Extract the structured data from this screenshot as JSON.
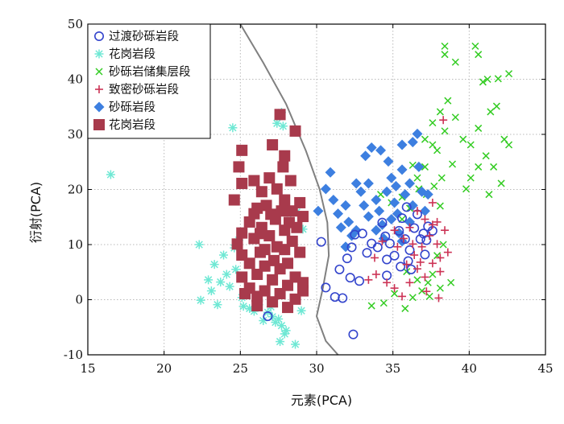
{
  "chart_data": {
    "type": "scatter",
    "title": "",
    "xlabel": "元素(PCA)",
    "ylabel": "衍射(PCA)",
    "xlim": [
      15,
      45
    ],
    "ylim": [
      -10,
      50
    ],
    "xticks": [
      "15",
      "20",
      "25",
      "30",
      "35",
      "40",
      "45"
    ],
    "yticks": [
      "-10",
      "0",
      "10",
      "20",
      "30",
      "40",
      "50"
    ],
    "grid": "dotted",
    "legend_position": "top-left",
    "series": [
      {
        "name": "过渡砂砾岩段",
        "marker": "circle-open",
        "color": "#3344cc",
        "points": [
          [
            30.3,
            10.5
          ],
          [
            30.6,
            2.2
          ],
          [
            31.2,
            0.5
          ],
          [
            31.7,
            0.3
          ],
          [
            31.5,
            5.5
          ],
          [
            32.0,
            7.5
          ],
          [
            32.3,
            9.5
          ],
          [
            32.5,
            11.8
          ],
          [
            32.2,
            4.0
          ],
          [
            32.4,
            -6.3
          ],
          [
            33.0,
            12.0
          ],
          [
            33.3,
            8.5
          ],
          [
            33.6,
            10.2
          ],
          [
            34.0,
            9.5
          ],
          [
            34.3,
            14.0
          ],
          [
            34.5,
            11.5
          ],
          [
            34.8,
            10.2
          ],
          [
            34.6,
            7.3
          ],
          [
            35.1,
            8.0
          ],
          [
            35.4,
            12.5
          ],
          [
            35.6,
            14.8
          ],
          [
            35.8,
            11.0
          ],
          [
            36.1,
            9.0
          ],
          [
            36.2,
            5.5
          ],
          [
            36.4,
            13.0
          ],
          [
            36.6,
            15.5
          ],
          [
            36.8,
            11.0
          ],
          [
            37.0,
            12.0
          ],
          [
            37.2,
            10.8
          ],
          [
            37.3,
            13.3
          ],
          [
            37.6,
            12.5
          ],
          [
            37.1,
            8.2
          ],
          [
            36.0,
            7.0
          ],
          [
            35.5,
            6.0
          ],
          [
            34.6,
            4.4
          ],
          [
            26.8,
            -3.0
          ],
          [
            32.8,
            3.4
          ],
          [
            35.9,
            16.8
          ]
        ]
      },
      {
        "name": "花岗岩段",
        "marker": "asterisk",
        "color": "#6ee8d4",
        "points": [
          [
            16.5,
            22.7
          ],
          [
            22.3,
            10.0
          ],
          [
            22.4,
            -0.1
          ],
          [
            22.9,
            3.6
          ],
          [
            23.1,
            1.6
          ],
          [
            23.3,
            6.4
          ],
          [
            23.5,
            -0.9
          ],
          [
            23.7,
            3.2
          ],
          [
            23.9,
            8.1
          ],
          [
            24.1,
            4.6
          ],
          [
            24.3,
            2.4
          ],
          [
            24.5,
            31.2
          ],
          [
            24.6,
            9.4
          ],
          [
            24.7,
            5.5
          ],
          [
            24.9,
            10.8
          ],
          [
            25.1,
            0.4
          ],
          [
            25.2,
            -1.2
          ],
          [
            25.6,
            -1.6
          ],
          [
            25.9,
            -2.1
          ],
          [
            26.2,
            -0.9
          ],
          [
            26.5,
            -3.8
          ],
          [
            26.8,
            -2.3
          ],
          [
            27.0,
            -1.3
          ],
          [
            27.1,
            -3.1
          ],
          [
            27.3,
            -4.1
          ],
          [
            27.5,
            -3.5
          ],
          [
            27.7,
            -4.7
          ],
          [
            27.9,
            -6.2
          ],
          [
            28.0,
            -5.6
          ],
          [
            27.6,
            -7.6
          ],
          [
            28.6,
            -8.1
          ],
          [
            27.4,
            32.0
          ],
          [
            27.8,
            31.5
          ],
          [
            27.7,
            34.0
          ],
          [
            28.3,
            14.4
          ],
          [
            28.7,
            15.9
          ],
          [
            29.1,
            12.8
          ],
          [
            29.0,
            -2.0
          ]
        ]
      },
      {
        "name": "砂砾岩储集层段",
        "marker": "x",
        "color": "#33cc22",
        "points": [
          [
            33.6,
            -1.1
          ],
          [
            34.4,
            -0.6
          ],
          [
            35.1,
            1.1
          ],
          [
            35.8,
            -1.6
          ],
          [
            36.3,
            0.4
          ],
          [
            36.9,
            1.6
          ],
          [
            37.3,
            3.1
          ],
          [
            37.6,
            4.6
          ],
          [
            38.1,
            2.1
          ],
          [
            34.2,
            19.1
          ],
          [
            34.9,
            17.6
          ],
          [
            35.6,
            18.6
          ],
          [
            36.1,
            16.6
          ],
          [
            36.7,
            20.1
          ],
          [
            37.2,
            19.1
          ],
          [
            37.7,
            20.6
          ],
          [
            38.2,
            22.1
          ],
          [
            37.1,
            24.1
          ],
          [
            37.6,
            28.1
          ],
          [
            37.1,
            29.1
          ],
          [
            37.6,
            32.1
          ],
          [
            37.9,
            27.1
          ],
          [
            38.4,
            30.6
          ],
          [
            38.1,
            34.1
          ],
          [
            38.6,
            36.1
          ],
          [
            39.1,
            33.1
          ],
          [
            39.6,
            29.1
          ],
          [
            40.1,
            28.1
          ],
          [
            40.6,
            31.1
          ],
          [
            41.1,
            26.1
          ],
          [
            41.6,
            24.1
          ],
          [
            42.1,
            21.1
          ],
          [
            41.3,
            19.1
          ],
          [
            40.6,
            24.1
          ],
          [
            39.8,
            20.1
          ],
          [
            38.4,
            46.0
          ],
          [
            38.4,
            44.5
          ],
          [
            39.1,
            43.1
          ],
          [
            40.4,
            46.0
          ],
          [
            40.6,
            44.5
          ],
          [
            40.9,
            39.5
          ],
          [
            41.2,
            40.0
          ],
          [
            41.9,
            40.1
          ],
          [
            42.6,
            41.0
          ],
          [
            41.4,
            34.1
          ],
          [
            42.3,
            29.1
          ],
          [
            42.6,
            28.1
          ],
          [
            41.8,
            35.1
          ],
          [
            40.1,
            22.1
          ],
          [
            38.9,
            24.6
          ],
          [
            36.6,
            22.1
          ],
          [
            36.3,
            24.4
          ],
          [
            35.6,
            14.6
          ],
          [
            35.9,
            5.1
          ],
          [
            36.6,
            3.6
          ],
          [
            37.4,
            0.6
          ],
          [
            38.8,
            3.1
          ],
          [
            38.3,
            10.0
          ],
          [
            37.9,
            8.0
          ],
          [
            38.1,
            17.0
          ]
        ]
      },
      {
        "name": "致密砂砾岩段",
        "marker": "plus",
        "color": "#cc3355",
        "points": [
          [
            33.4,
            3.6
          ],
          [
            33.9,
            4.6
          ],
          [
            34.6,
            3.1
          ],
          [
            35.1,
            2.1
          ],
          [
            35.6,
            0.6
          ],
          [
            36.1,
            3.1
          ],
          [
            36.6,
            5.6
          ],
          [
            37.1,
            4.1
          ],
          [
            37.6,
            6.6
          ],
          [
            38.1,
            5.1
          ],
          [
            36.4,
            8.1
          ],
          [
            35.9,
            6.4
          ],
          [
            36.9,
            9.6
          ],
          [
            37.4,
            11.6
          ],
          [
            37.9,
            10.1
          ],
          [
            38.1,
            7.6
          ],
          [
            37.6,
            13.6
          ],
          [
            37.1,
            14.6
          ],
          [
            36.6,
            16.1
          ],
          [
            36.1,
            13.1
          ],
          [
            35.7,
            11.1
          ],
          [
            36.3,
            10.1
          ],
          [
            35.3,
            9.6
          ],
          [
            37.9,
            14.1
          ],
          [
            37.6,
            17.6
          ],
          [
            38.3,
            32.6
          ],
          [
            38.6,
            8.6
          ],
          [
            38.4,
            12.6
          ],
          [
            34.3,
            10.6
          ],
          [
            33.8,
            7.6
          ],
          [
            35.1,
            12.6
          ],
          [
            36.8,
            6.8
          ],
          [
            37.2,
            1.5
          ],
          [
            38.0,
            0.3
          ]
        ]
      },
      {
        "name": "砂砾岩段",
        "marker": "diamond",
        "color": "#3d7fe0",
        "points": [
          [
            30.1,
            16.1
          ],
          [
            30.6,
            20.1
          ],
          [
            30.9,
            23.1
          ],
          [
            31.1,
            18.1
          ],
          [
            31.4,
            15.6
          ],
          [
            31.6,
            13.1
          ],
          [
            31.9,
            17.1
          ],
          [
            32.1,
            14.1
          ],
          [
            32.3,
            11.6
          ],
          [
            32.6,
            21.1
          ],
          [
            32.9,
            19.6
          ],
          [
            33.1,
            17.1
          ],
          [
            33.2,
            26.1
          ],
          [
            33.4,
            15.1
          ],
          [
            33.6,
            27.6
          ],
          [
            33.9,
            18.1
          ],
          [
            34.1,
            16.1
          ],
          [
            34.3,
            13.6
          ],
          [
            34.6,
            19.6
          ],
          [
            34.9,
            22.1
          ],
          [
            35.1,
            17.6
          ],
          [
            35.3,
            15.6
          ],
          [
            35.6,
            28.1
          ],
          [
            35.8,
            19.1
          ],
          [
            36.1,
            21.1
          ],
          [
            36.3,
            17.1
          ],
          [
            36.6,
            30.1
          ],
          [
            36.7,
            24.1
          ],
          [
            36.9,
            19.6
          ],
          [
            37.1,
            16.1
          ],
          [
            35.4,
            12.1
          ],
          [
            34.9,
            14.6
          ],
          [
            34.4,
            11.1
          ],
          [
            33.9,
            12.6
          ],
          [
            35.6,
            10.6
          ],
          [
            36.1,
            14.1
          ],
          [
            34.2,
            27.1
          ],
          [
            35.2,
            20.6
          ],
          [
            31.9,
            9.6
          ],
          [
            32.6,
            12.6
          ],
          [
            33.4,
            21.1
          ],
          [
            34.7,
            25.1
          ],
          [
            36.3,
            28.6
          ],
          [
            35.6,
            23.6
          ],
          [
            37.3,
            19.1
          ]
        ]
      },
      {
        "name": "花岗岩段",
        "marker": "square",
        "color": "#a83a4c",
        "points": [
          [
            27.6,
            33.6
          ],
          [
            28.6,
            30.6
          ],
          [
            27.1,
            28.1
          ],
          [
            27.9,
            26.1
          ],
          [
            25.1,
            27.1
          ],
          [
            24.9,
            24.1
          ],
          [
            25.1,
            21.1
          ],
          [
            24.6,
            18.1
          ],
          [
            25.9,
            21.6
          ],
          [
            26.4,
            19.6
          ],
          [
            26.9,
            22.1
          ],
          [
            27.4,
            20.1
          ],
          [
            27.9,
            18.1
          ],
          [
            28.4,
            16.1
          ],
          [
            28.9,
            17.6
          ],
          [
            29.1,
            15.1
          ],
          [
            26.1,
            16.6
          ],
          [
            25.6,
            14.1
          ],
          [
            25.1,
            12.1
          ],
          [
            25.9,
            11.1
          ],
          [
            26.4,
            13.1
          ],
          [
            26.9,
            11.6
          ],
          [
            27.4,
            9.6
          ],
          [
            27.9,
            12.6
          ],
          [
            28.4,
            10.6
          ],
          [
            28.9,
            8.6
          ],
          [
            25.1,
            8.1
          ],
          [
            25.6,
            6.6
          ],
          [
            26.1,
            4.6
          ],
          [
            26.6,
            6.1
          ],
          [
            27.1,
            3.6
          ],
          [
            27.6,
            5.6
          ],
          [
            28.1,
            2.6
          ],
          [
            28.6,
            4.1
          ],
          [
            29.1,
            1.6
          ],
          [
            25.6,
            2.1
          ],
          [
            26.1,
            0.6
          ],
          [
            26.6,
            1.6
          ],
          [
            27.1,
            -0.4
          ],
          [
            27.6,
            1.1
          ],
          [
            28.1,
            -1.4
          ],
          [
            28.6,
            0.1
          ],
          [
            29.1,
            3.1
          ],
          [
            25.1,
            4.1
          ],
          [
            24.8,
            10.1
          ],
          [
            26.3,
            8.6
          ],
          [
            27.3,
            14.6
          ],
          [
            28.1,
            6.6
          ],
          [
            28.7,
            13.1
          ],
          [
            26.7,
            17.1
          ],
          [
            27.7,
            16.1
          ],
          [
            25.9,
            15.6
          ],
          [
            28.3,
            21.6
          ],
          [
            27.8,
            24.1
          ],
          [
            26.6,
            9.1
          ],
          [
            27.2,
            7.1
          ],
          [
            25.3,
            1.1
          ],
          [
            26.1,
            -1.1
          ],
          [
            27.9,
            9.1
          ],
          [
            28.2,
            14.0
          ],
          [
            26.3,
            12.0
          ],
          [
            27.0,
            15.5
          ]
        ]
      }
    ]
  }
}
